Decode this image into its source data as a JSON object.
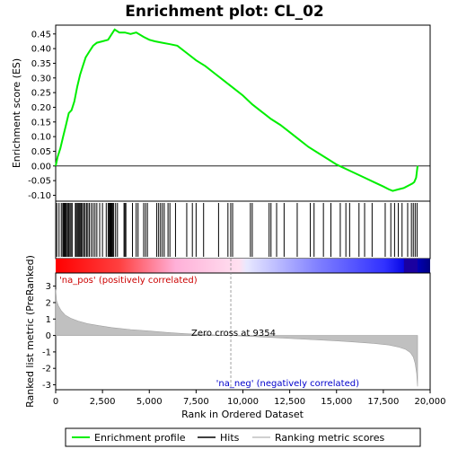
{
  "chart_data": {
    "type": "line",
    "title": "Enrichment plot: CL_02",
    "es_panel": {
      "ylabel": "Enrichment score (ES)",
      "ylim": [
        -0.12,
        0.48
      ],
      "yticks": [
        -0.1,
        -0.05,
        0.0,
        0.05,
        0.1,
        0.15,
        0.2,
        0.25,
        0.3,
        0.35,
        0.4,
        0.45
      ],
      "ytick_labels": [
        "-0.10",
        "-0.05",
        "0.00",
        "0.05",
        "0.10",
        "0.15",
        "0.20",
        "0.25",
        "0.30",
        "0.35",
        "0.40",
        "0.45"
      ],
      "line_color": "#00ee00",
      "series": [
        {
          "name": "Enrichment profile",
          "x": [
            0,
            100,
            250,
            400,
            550,
            700,
            850,
            1000,
            1150,
            1300,
            1450,
            1600,
            1800,
            2000,
            2200,
            2500,
            2800,
            3000,
            3150,
            3400,
            3700,
            4000,
            4300,
            4700,
            5000,
            5300,
            5700,
            6100,
            6500,
            7000,
            7500,
            8000,
            8500,
            9000,
            9500,
            10000,
            10500,
            11000,
            11500,
            12000,
            12500,
            13000,
            13500,
            14000,
            14500,
            15000,
            15500,
            16000,
            16500,
            17000,
            17500,
            17800,
            18000,
            18300,
            18600,
            18900,
            19050,
            19150,
            19250,
            19330
          ],
          "y": [
            0.0,
            0.03,
            0.06,
            0.1,
            0.14,
            0.18,
            0.19,
            0.22,
            0.27,
            0.31,
            0.34,
            0.37,
            0.39,
            0.41,
            0.42,
            0.425,
            0.43,
            0.45,
            0.465,
            0.455,
            0.455,
            0.45,
            0.455,
            0.44,
            0.43,
            0.425,
            0.42,
            0.415,
            0.41,
            0.385,
            0.36,
            0.34,
            0.315,
            0.29,
            0.265,
            0.24,
            0.21,
            0.185,
            0.16,
            0.14,
            0.115,
            0.09,
            0.065,
            0.045,
            0.025,
            0.005,
            -0.01,
            -0.025,
            -0.04,
            -0.055,
            -0.07,
            -0.08,
            -0.085,
            -0.08,
            -0.075,
            -0.065,
            -0.06,
            -0.055,
            -0.04,
            0.0
          ]
        }
      ]
    },
    "hits_panel": {
      "hit_positions": [
        60,
        180,
        300,
        380,
        430,
        480,
        530,
        580,
        640,
        700,
        760,
        820,
        880,
        1050,
        1100,
        1160,
        1210,
        1260,
        1310,
        1370,
        1430,
        1500,
        1570,
        1650,
        1720,
        1800,
        1900,
        2000,
        2100,
        2200,
        2350,
        2500,
        2700,
        2800,
        2850,
        2900,
        2950,
        3000,
        3050,
        3100,
        3200,
        3300,
        3650,
        3700,
        3750,
        4100,
        4300,
        4400,
        4700,
        4800,
        4900,
        5400,
        5500,
        5600,
        5700,
        5800,
        6000,
        6100,
        6400,
        7000,
        7300,
        7500,
        7900,
        8700,
        9200,
        9350,
        9450,
        10400,
        10500,
        11400,
        11500,
        11800,
        12200,
        12900,
        13600,
        13800,
        14300,
        14700,
        15200,
        15500,
        15700,
        16200,
        16500,
        16900,
        17600,
        17900,
        18100,
        18300,
        18500,
        18800,
        19000,
        19100,
        19200,
        19300
      ]
    },
    "metric_panel": {
      "ylabel": "Ranked list metric (PreRanked)",
      "ylim": [
        -3.3,
        3.8
      ],
      "yticks": [
        -3,
        -2,
        -1,
        0,
        1,
        2,
        3
      ],
      "ytick_labels": [
        "-3",
        "-2",
        "-1",
        "0",
        "1",
        "2",
        "3"
      ],
      "fill_color": "#c0c0c0",
      "zero_cross_label": "Zero cross at 9354",
      "zero_cross": 9354,
      "pos_label": "'na_pos' (positively correlated)",
      "neg_label": "'na_neg' (negatively correlated)",
      "curve_x": [
        0,
        50,
        150,
        300,
        500,
        800,
        1200,
        1700,
        2300,
        3000,
        4000,
        5000,
        6000,
        7000,
        8000,
        9354,
        10500,
        12000,
        13500,
        15000,
        16000,
        17000,
        17800,
        18300,
        18700,
        18950,
        19100,
        19200,
        19280,
        19330
      ],
      "curve_y": [
        2.8,
        2.1,
        1.8,
        1.5,
        1.25,
        1.05,
        0.88,
        0.72,
        0.6,
        0.48,
        0.36,
        0.27,
        0.18,
        0.1,
        0.05,
        0.0,
        -0.06,
        -0.15,
        -0.24,
        -0.33,
        -0.4,
        -0.48,
        -0.58,
        -0.7,
        -0.85,
        -1.05,
        -1.3,
        -1.7,
        -2.3,
        -3.1
      ]
    },
    "xaxis": {
      "xlabel": "Rank in Ordered Dataset",
      "xlim": [
        0,
        20000
      ],
      "xticks": [
        0,
        2500,
        5000,
        7500,
        10000,
        12500,
        15000,
        17500,
        20000
      ],
      "xtick_labels": [
        "0",
        "2,500",
        "5,000",
        "7,500",
        "10,000",
        "12,500",
        "15,000",
        "17,500",
        "20,000"
      ],
      "n_genes": 19330
    },
    "legend": {
      "position": "bottom",
      "items": [
        {
          "label": "Enrichment profile",
          "color": "#00ee00"
        },
        {
          "label": "Hits",
          "color": "#000000"
        },
        {
          "label": "Ranking metric scores",
          "color": "#c0c0c0"
        }
      ]
    },
    "colors": {
      "pos_label_color": "#cc0000",
      "neg_label_color": "#0000cc",
      "heat_red": "#ff0000",
      "heat_blue": "#0000ff"
    }
  }
}
